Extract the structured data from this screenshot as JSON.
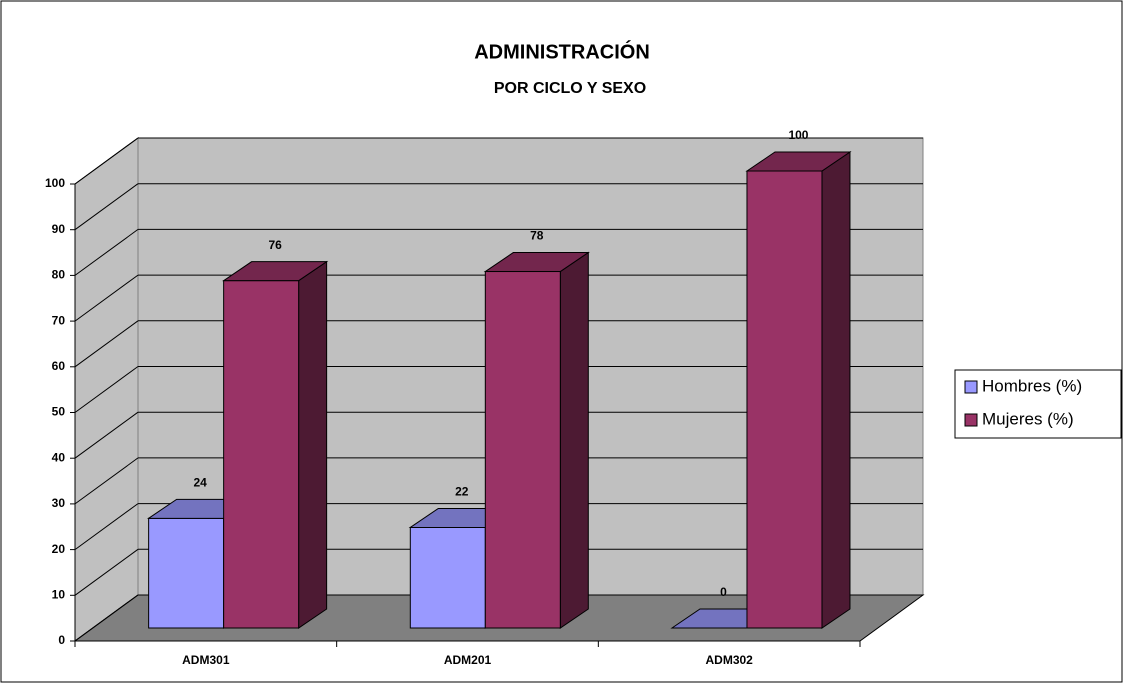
{
  "chart_data": {
    "type": "bar3d",
    "title": "ADMINISTRACIÓN",
    "subtitle": "POR CICLO Y SEXO",
    "categories": [
      "ADM301",
      "ADM201",
      "ADM302"
    ],
    "series": [
      {
        "name": "Hombres (%)",
        "color": "#9999ff",
        "values": [
          24,
          22,
          0
        ]
      },
      {
        "name": "Mujeres (%)",
        "color": "#993366",
        "values": [
          76,
          78,
          100
        ]
      }
    ],
    "ylim": [
      0,
      100
    ],
    "yticks": [
      0,
      10,
      20,
      30,
      40,
      50,
      60,
      70,
      80,
      90,
      100
    ],
    "grid": true,
    "legend": "right"
  }
}
